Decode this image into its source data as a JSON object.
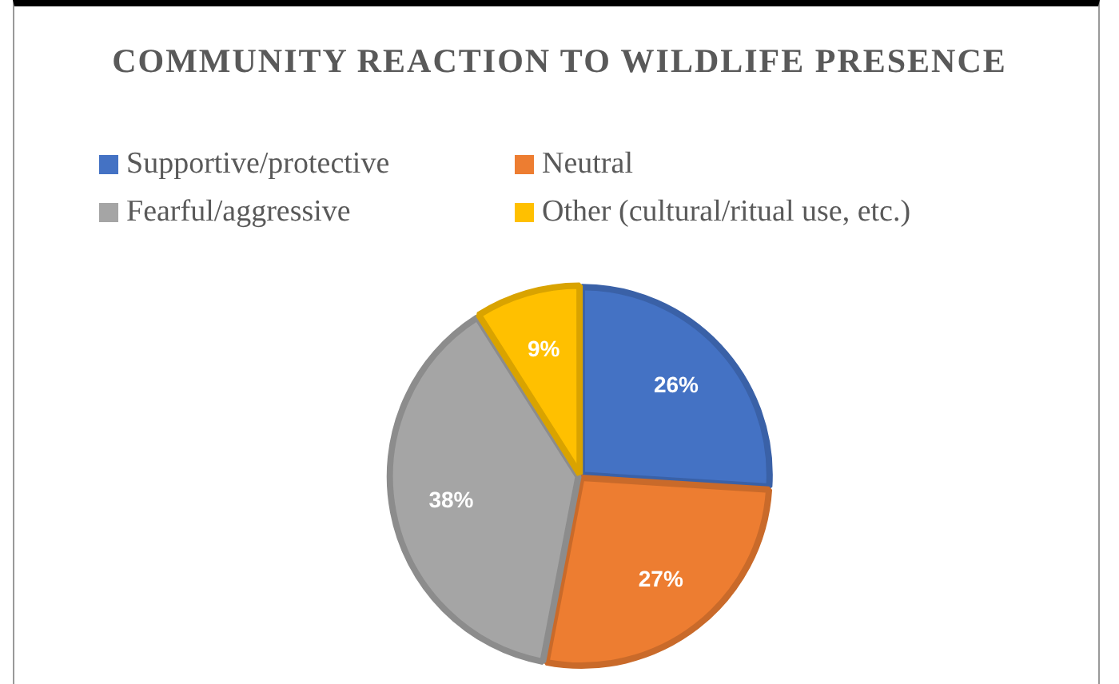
{
  "chart_data": {
    "type": "pie",
    "title": "COMMUNITY REACTION TO WILDLIFE PRESENCE",
    "categories": [
      "Supportive/protective",
      "Neutral",
      "Fearful/aggressive",
      "Other (cultural/ritual use, etc.)"
    ],
    "values": [
      26,
      27,
      38,
      9
    ],
    "colors": [
      "#4472c4",
      "#ed7d31",
      "#a5a5a5",
      "#ffc000"
    ],
    "value_labels": [
      "26%",
      "27%",
      "38%",
      "9%"
    ],
    "legend": "top"
  }
}
